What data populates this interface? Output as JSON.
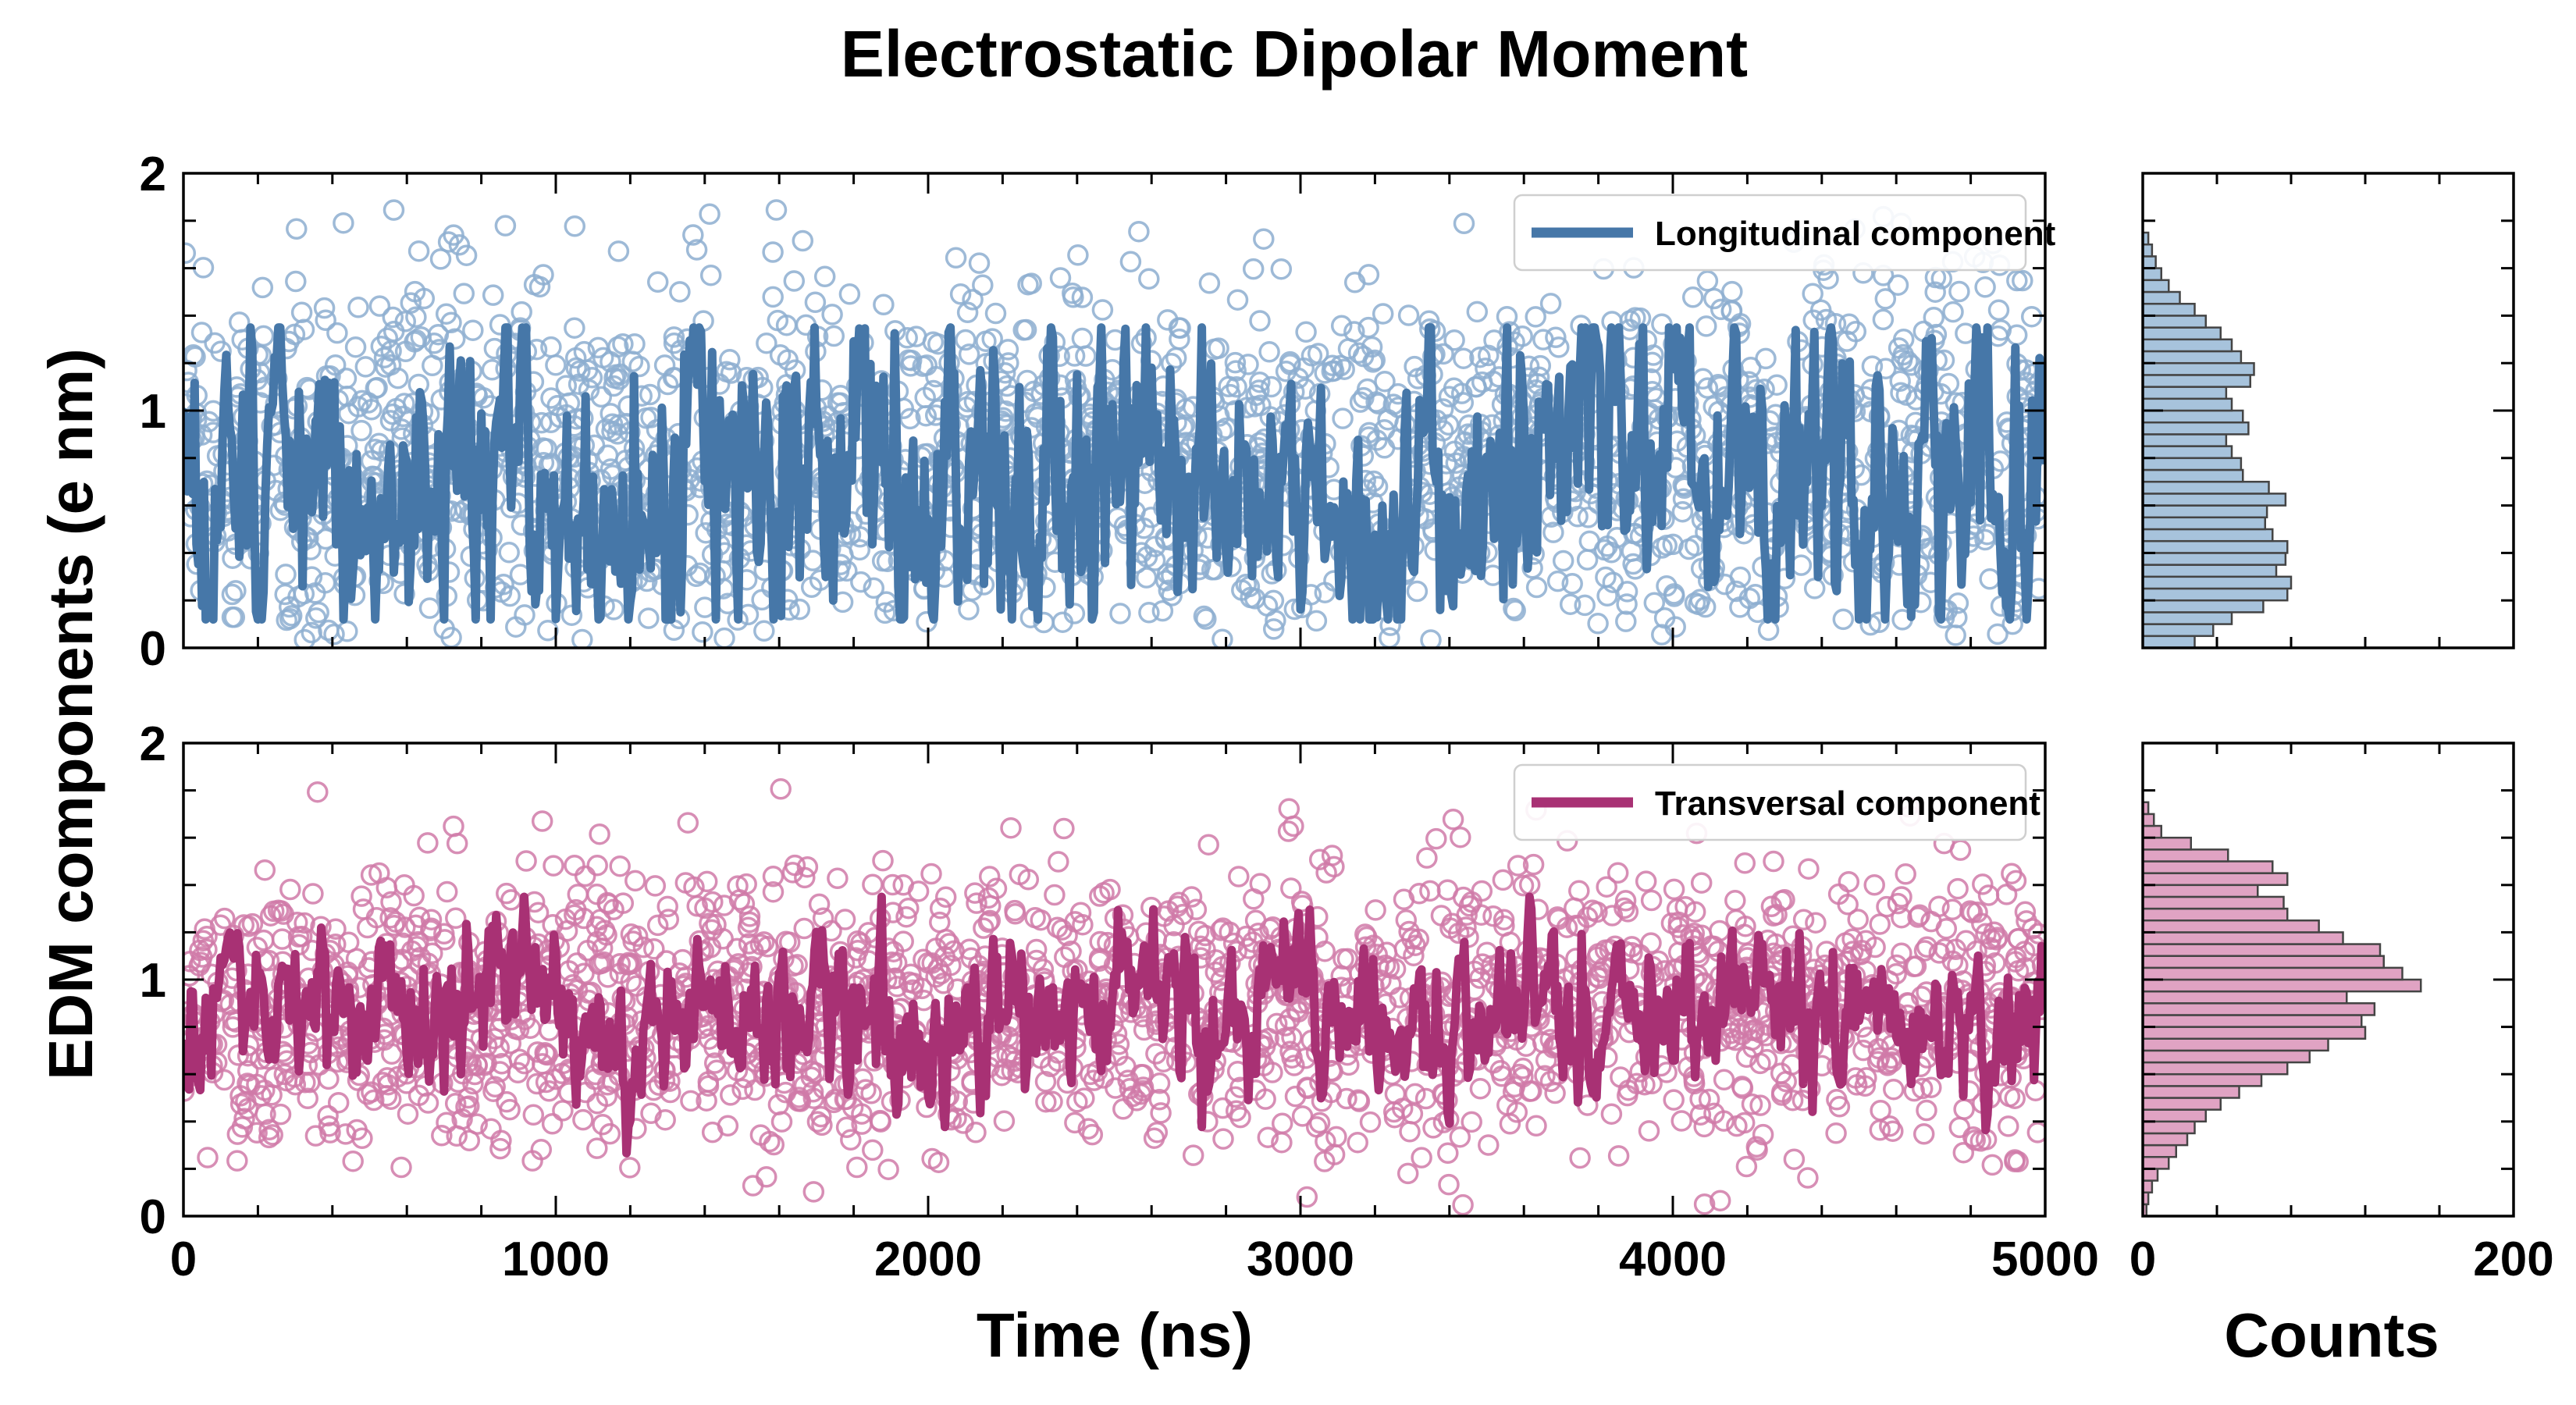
{
  "chart_data": {
    "type": "scatter",
    "title": "Electrostatic Dipolar Moment",
    "ylabel": "EDM components (e nm)",
    "xlabel": "Time (ns)",
    "hist_xlabel": "Counts",
    "xlim": [
      0,
      5000
    ],
    "ylim": [
      0,
      2
    ],
    "hist_xlim": [
      0,
      200
    ],
    "xticks": [
      "0",
      "1000",
      "2000",
      "3000",
      "4000",
      "5000"
    ],
    "yticks": [
      "0",
      "1",
      "2"
    ],
    "hist_xticks": [
      "0",
      "200"
    ],
    "series": [
      {
        "name": "Longitudinal component",
        "panel": "top",
        "color": "#4677a8",
        "marker_color": "#8daed0",
        "hist_fill": "#a7c3dc",
        "scatter_mean": 0.75,
        "scatter_std": 0.42,
        "line_control_points": {
          "x": [
            0,
            100,
            200,
            300,
            400,
            500,
            600,
            700,
            800,
            900,
            1000,
            1100,
            1200,
            1300,
            1400,
            1500,
            1600,
            1700,
            1800,
            1900,
            2000,
            2100,
            2200,
            2300,
            2400,
            2500,
            2600,
            2700,
            2800,
            2900,
            3000,
            3100,
            3200,
            3300,
            3400,
            3500,
            3600,
            3700,
            3800,
            3900,
            4000,
            4100,
            4200,
            4300,
            4400,
            4500,
            4600,
            4700,
            4800,
            4900,
            5000
          ],
          "y": [
            0.75,
            0.72,
            0.7,
            0.74,
            0.68,
            0.7,
            0.72,
            0.73,
            0.95,
            1.0,
            0.8,
            0.6,
            0.45,
            0.65,
            0.7,
            0.62,
            0.5,
            0.85,
            0.88,
            0.6,
            0.45,
            0.6,
            0.75,
            0.7,
            0.65,
            0.78,
            0.8,
            0.6,
            0.55,
            0.72,
            0.7,
            0.55,
            0.6,
            0.5,
            0.6,
            0.9,
            0.85,
            0.8,
            0.78,
            0.85,
            0.85,
            0.82,
            0.7,
            0.75,
            0.72,
            0.6,
            0.58,
            0.68,
            0.75,
            0.62,
            0.7
          ]
        },
        "histogram": {
          "bin_edges": [
            0.0,
            0.05,
            0.1,
            0.15,
            0.2,
            0.25,
            0.3,
            0.35,
            0.4,
            0.45,
            0.5,
            0.55,
            0.6,
            0.65,
            0.7,
            0.75,
            0.8,
            0.85,
            0.9,
            0.95,
            1.0,
            1.05,
            1.1,
            1.15,
            1.2,
            1.25,
            1.3,
            1.35,
            1.4,
            1.45,
            1.5,
            1.55,
            1.6,
            1.65,
            1.7,
            1.75
          ],
          "counts": [
            28,
            38,
            48,
            65,
            78,
            80,
            72,
            77,
            78,
            70,
            66,
            67,
            77,
            68,
            54,
            53,
            48,
            45,
            57,
            54,
            48,
            45,
            58,
            60,
            53,
            48,
            42,
            34,
            28,
            20,
            14,
            10,
            7,
            5,
            3
          ]
        }
      },
      {
        "name": "Transversal component",
        "panel": "bottom",
        "color": "#a83174",
        "marker_color": "#d07aa8",
        "hist_fill": "#e0a3c3",
        "scatter_mean": 0.88,
        "scatter_std": 0.3,
        "line_control_points": {
          "x": [
            0,
            100,
            200,
            300,
            400,
            500,
            600,
            700,
            800,
            900,
            1000,
            1100,
            1200,
            1300,
            1400,
            1500,
            1600,
            1700,
            1800,
            1900,
            2000,
            2100,
            2200,
            2300,
            2400,
            2500,
            2600,
            2700,
            2800,
            2900,
            3000,
            3100,
            3200,
            3300,
            3400,
            3500,
            3600,
            3700,
            3800,
            3900,
            4000,
            4100,
            4200,
            4300,
            4400,
            4500,
            4600,
            4700,
            4800,
            4900,
            5000
          ],
          "y": [
            0.9,
            0.92,
            0.88,
            0.95,
            0.85,
            0.88,
            0.82,
            0.85,
            0.9,
            1.0,
            0.95,
            0.8,
            0.78,
            0.85,
            0.88,
            0.86,
            0.85,
            0.9,
            0.88,
            0.82,
            0.8,
            0.88,
            0.9,
            0.82,
            0.85,
            0.98,
            1.0,
            0.88,
            0.82,
            0.9,
            0.92,
            0.85,
            0.8,
            0.82,
            0.85,
            0.95,
            0.88,
            0.82,
            0.85,
            0.88,
            0.9,
            0.85,
            0.95,
            1.05,
            0.9,
            0.78,
            0.82,
            0.8,
            0.85,
            0.82,
            0.85
          ]
        },
        "histogram": {
          "bin_edges": [
            0.0,
            0.05,
            0.1,
            0.15,
            0.2,
            0.25,
            0.3,
            0.35,
            0.4,
            0.45,
            0.5,
            0.55,
            0.6,
            0.65,
            0.7,
            0.75,
            0.8,
            0.85,
            0.9,
            0.95,
            1.0,
            1.05,
            1.1,
            1.15,
            1.2,
            1.25,
            1.3,
            1.35,
            1.4,
            1.45,
            1.5,
            1.55,
            1.6,
            1.65,
            1.7,
            1.75
          ],
          "counts": [
            2,
            3,
            5,
            8,
            14,
            18,
            24,
            28,
            34,
            42,
            52,
            64,
            78,
            90,
            100,
            120,
            118,
            125,
            110,
            150,
            140,
            130,
            128,
            108,
            95,
            78,
            76,
            62,
            78,
            70,
            46,
            26,
            10,
            6,
            3
          ]
        }
      }
    ]
  }
}
